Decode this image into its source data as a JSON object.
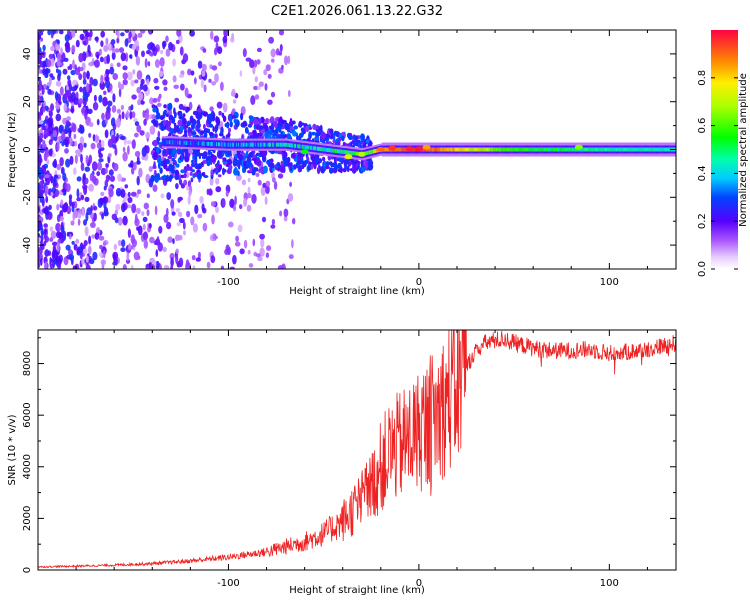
{
  "chart_data": [
    {
      "type": "heatmap",
      "title": "C2E1.2026.061.13.22.G32",
      "xlabel": "Height of straight line (km)",
      "ylabel": "Frequency (Hz)",
      "xlim": [
        -200,
        135
      ],
      "ylim": [
        -50,
        50
      ],
      "x_ticks": [
        "-100",
        "0",
        "100"
      ],
      "y_ticks": [
        "-40",
        "-20",
        "0",
        "20",
        "40"
      ],
      "colorbar": {
        "label": "Normalized spectral amplitude",
        "range": [
          0,
          1
        ],
        "ticks": [
          "0.0",
          "0.2",
          "0.4",
          "0.6",
          "0.8"
        ]
      },
      "ridge": {
        "description_points": [
          {
            "x": -130,
            "f": 3,
            "amp": 0.3
          },
          {
            "x": -100,
            "f": 2,
            "amp": 0.35
          },
          {
            "x": -70,
            "f": 2,
            "amp": 0.4
          },
          {
            "x": -50,
            "f": 0,
            "amp": 0.45
          },
          {
            "x": -30,
            "f": -2,
            "amp": 0.55
          },
          {
            "x": -20,
            "f": 0,
            "amp": 0.85
          },
          {
            "x": 0,
            "f": 0,
            "amp": 0.95
          },
          {
            "x": 50,
            "f": 0,
            "amp": 0.55
          },
          {
            "x": 100,
            "f": 0,
            "amp": 0.45
          },
          {
            "x": 135,
            "f": 0,
            "amp": 0.45
          }
        ]
      }
    },
    {
      "type": "line",
      "xlabel": "Height of straight line (km)",
      "ylabel": "SNR (10 * v/v)",
      "xlim": [
        -200,
        135
      ],
      "ylim": [
        0,
        9300
      ],
      "x_ticks": [
        "-100",
        "0",
        "100"
      ],
      "y_ticks": [
        "0",
        "2000",
        "4000",
        "6000",
        "8000"
      ],
      "series": [
        {
          "name": "SNR",
          "color": "#ee2222",
          "x": [
            -200,
            -180,
            -160,
            -140,
            -120,
            -100,
            -80,
            -70,
            -60,
            -50,
            -40,
            -30,
            -25,
            -20,
            -15,
            -10,
            -5,
            0,
            5,
            10,
            15,
            20,
            25,
            30,
            35,
            40,
            45,
            50,
            60,
            70,
            80,
            90,
            100,
            110,
            120,
            135
          ],
          "values": [
            120,
            150,
            190,
            250,
            350,
            500,
            700,
            900,
            1100,
            1400,
            1900,
            2700,
            3200,
            4000,
            4600,
            4800,
            5100,
            5400,
            5700,
            6100,
            6600,
            7200,
            7900,
            8500,
            8800,
            8900,
            8950,
            8800,
            8600,
            8500,
            8500,
            8550,
            8400,
            8450,
            8550,
            8800
          ]
        }
      ]
    }
  ]
}
